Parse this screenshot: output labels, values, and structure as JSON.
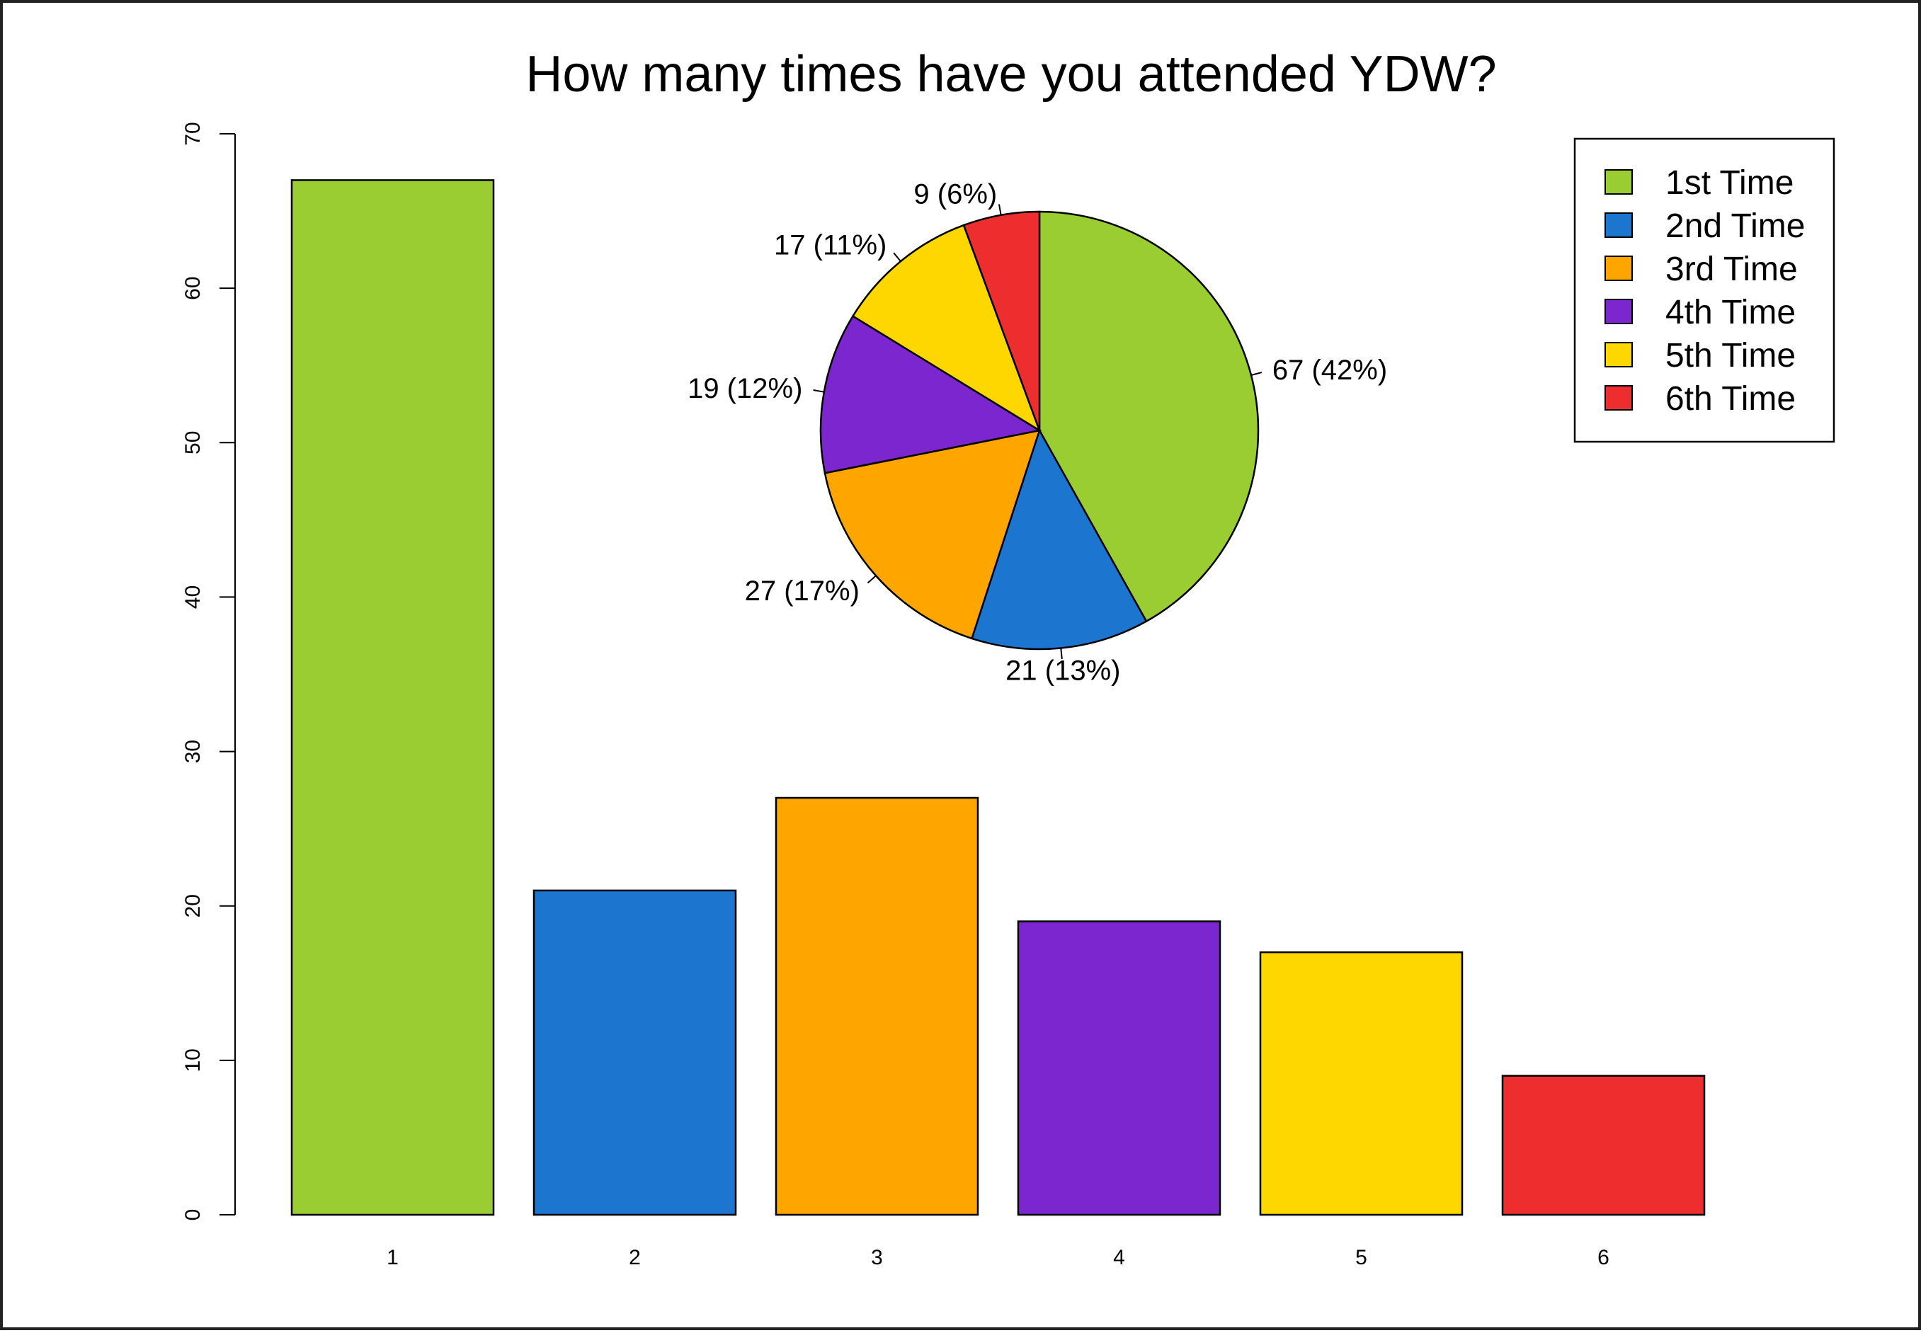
{
  "chart_data": [
    {
      "type": "bar",
      "title": "How many times have you attended YDW?",
      "categories": [
        "1",
        "2",
        "3",
        "4",
        "5",
        "6"
      ],
      "values": [
        67,
        21,
        27,
        19,
        17,
        9
      ],
      "colors": [
        "#9ACD32",
        "#1C75CF",
        "#FFA500",
        "#7B26CF",
        "#FFD700",
        "#EE2E2E"
      ],
      "ylim": [
        0,
        70
      ],
      "yticks": [
        "0",
        "10",
        "20",
        "30",
        "40",
        "50",
        "60",
        "70"
      ],
      "grid": false
    },
    {
      "type": "pie",
      "values": [
        67,
        21,
        27,
        19,
        17,
        9
      ],
      "labels": [
        "67 (42%)",
        "21 (13%)",
        "27 (17%)",
        "19 (12%)",
        "17 (11%)",
        "9 (6%)"
      ],
      "colors": [
        "#9ACD32",
        "#1C75CF",
        "#FFA500",
        "#7B26CF",
        "#FFD700",
        "#EE2E2E"
      ],
      "legend": {
        "placement": "top-right",
        "entries": [
          "1st Time",
          "2nd Time",
          "3rd Time",
          "4th Time",
          "5th Time",
          "6th Time"
        ]
      }
    }
  ]
}
